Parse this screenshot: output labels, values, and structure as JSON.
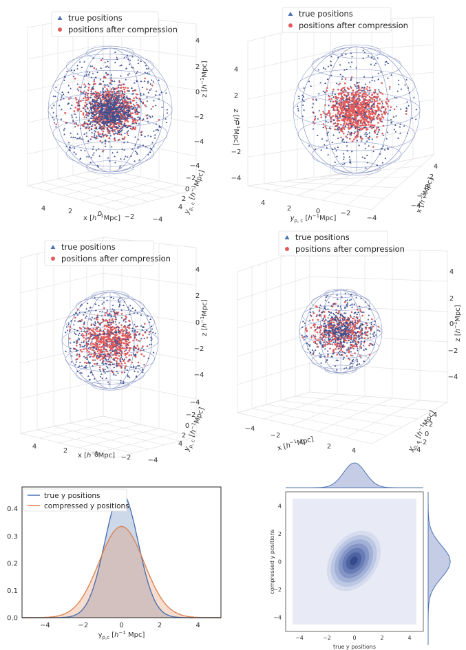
{
  "colors": {
    "true": "#3b4f8f",
    "compressed": "#e05a5a",
    "kde_true": "#4c72b0",
    "kde_comp": "#dd8452",
    "wire": "#8f9bc9",
    "grid": "#e3e3e3"
  },
  "chart_data": [
    {
      "type": "scatter",
      "title": "",
      "view": "top-left",
      "legend": [
        "true positions",
        "positions after compression"
      ],
      "xlabel": "x [h^{-1}Mpc]",
      "ylabel": "y_{p,c} [h^{-1}Mpc]",
      "zlabel": "z [h^{-1}Mpc]",
      "xlim": [
        -5,
        5
      ],
      "ylim": [
        -5,
        5
      ],
      "zlim": [
        -5,
        5
      ],
      "ticks": {
        "x": [
          "4",
          "2",
          "0",
          "-2",
          "-4"
        ],
        "y": [
          "-4",
          "-2",
          "0",
          "2",
          "4"
        ],
        "z": [
          "4",
          "2",
          "0",
          "-2",
          "-4"
        ]
      }
    },
    {
      "type": "scatter",
      "view": "top-right",
      "legend": [
        "true positions",
        "positions after compression"
      ],
      "xlabel": "x [h^{-1}Mpc]",
      "ylabel": "y_{p,c} [h^{-1}Mpc]",
      "zlabel": "z [h^{-1}Mpc]",
      "ticks": {
        "x": [
          "4",
          "2",
          "0",
          "-2",
          "-4"
        ],
        "y": [
          "4",
          "2",
          "0",
          "-2",
          "-4"
        ],
        "z": [
          "4",
          "2",
          "0",
          "-2",
          "-4"
        ]
      }
    },
    {
      "type": "scatter",
      "view": "middle-left",
      "legend": [
        "true positions",
        "positions after compression"
      ],
      "xlabel": "x [h^{-1}Mpc]",
      "ylabel": "y_{p,c} [h^{-1}Mpc]",
      "zlabel": "z [h^{-1}Mpc]",
      "ticks": {
        "x": [
          "4",
          "2",
          "0",
          "-2",
          "-4"
        ],
        "y": [
          "-4",
          "-2",
          "0",
          "2",
          "4"
        ],
        "z": [
          "4",
          "2",
          "0",
          "-2",
          "-4"
        ]
      }
    },
    {
      "type": "scatter",
      "view": "middle-right",
      "legend": [
        "true positions",
        "positions after compression"
      ],
      "xlabel": "x [h^{-1}Mpc]",
      "ylabel": "y_{p,c} [h^{-1}Mpc]",
      "zlabel": "z [h^{-1}Mpc]",
      "ticks": {
        "x": [
          "-4",
          "-2",
          "0",
          "2",
          "4"
        ],
        "y": [
          "-4",
          "-2",
          "0",
          "2",
          "4"
        ],
        "z": [
          "4",
          "2",
          "0",
          "-2",
          "-4"
        ]
      }
    },
    {
      "type": "area",
      "legend": [
        "true y positions",
        "compressed y positions"
      ],
      "xlabel": "y_{p,c} [h^{-1} Mpc]",
      "xlim": [
        -5.2,
        5.2
      ],
      "ylim": [
        0,
        0.48
      ],
      "xticks": [
        -4,
        -2,
        0,
        2,
        4
      ],
      "yticks": [
        0.0,
        0.1,
        0.2,
        0.3,
        0.4
      ],
      "series": [
        {
          "name": "true y positions",
          "sigma": 0.87,
          "peak": 0.46
        },
        {
          "name": "compressed y positions",
          "sigma": 1.18,
          "peak": 0.335
        }
      ]
    },
    {
      "type": "heatmap",
      "xlabel": "true  y positions",
      "ylabel": "compressed  y positions",
      "xlim": [
        -5,
        5
      ],
      "ylim": [
        -5,
        5
      ],
      "xticks": [
        -4,
        -2,
        0,
        2,
        4
      ],
      "yticks": [
        -4,
        -2,
        0,
        2,
        4
      ],
      "contour_levels": 7
    }
  ]
}
